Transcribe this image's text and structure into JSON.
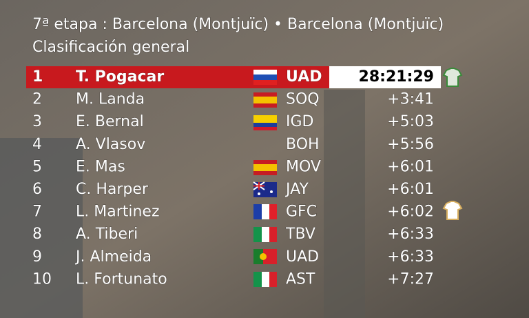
{
  "header": {
    "stage": "7ª etapa : Barcelona (Montjuïc) • Barcelona (Montjuïc)",
    "title": "Clasificación general"
  },
  "table": {
    "rows": [
      [
        "1",
        "T. Pogacar",
        "UAD",
        "28:21:29"
      ],
      [
        "2",
        "M. Landa",
        "SOQ",
        "+3:41"
      ],
      [
        "3",
        "E. Bernal",
        "IGD",
        "+5:03"
      ],
      [
        "4",
        "A. Vlasov",
        "BOH",
        "+5:56"
      ],
      [
        "5",
        "E. Mas",
        "MOV",
        "+6:01"
      ],
      [
        "6",
        "C. Harper",
        "JAY",
        "+6:01"
      ],
      [
        "7",
        "L. Martinez",
        "GFC",
        "+6:02"
      ],
      [
        "8",
        "A. Tiberi",
        "TBV",
        "+6:33"
      ],
      [
        "9",
        "J. Almeida",
        "UAD",
        "+6:33"
      ],
      [
        "10",
        "L. Fortunato",
        "AST",
        "+7:27"
      ]
    ]
  }
}
